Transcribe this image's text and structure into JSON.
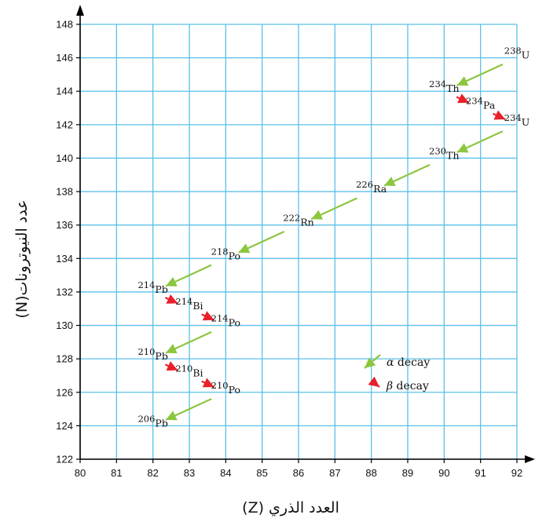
{
  "chart_data": {
    "type": "scatter",
    "xlabel": "العدد الذري (Z)",
    "ylabel": "عدد النيوترونات(N)",
    "xlim": [
      80,
      92
    ],
    "ylim": [
      122,
      148
    ],
    "x_ticks": [
      80,
      81,
      82,
      83,
      84,
      85,
      86,
      87,
      88,
      89,
      90,
      91,
      92
    ],
    "y_ticks": [
      122,
      124,
      126,
      128,
      130,
      132,
      134,
      136,
      138,
      140,
      142,
      144,
      146,
      148
    ],
    "grid": true,
    "colors": {
      "grid": "#5bc0e8",
      "alpha": "#8cc63f",
      "beta": "#e8202a",
      "axis": "#000000"
    },
    "nuclides": [
      {
        "mass": "238",
        "symbol": "U",
        "z": 92,
        "n": 146
      },
      {
        "mass": "234",
        "symbol": "Th",
        "z": 90,
        "n": 144
      },
      {
        "mass": "234",
        "symbol": "Pa",
        "z": 91,
        "n": 143
      },
      {
        "mass": "234",
        "symbol": "U",
        "z": 92,
        "n": 142
      },
      {
        "mass": "230",
        "symbol": "Th",
        "z": 90,
        "n": 140
      },
      {
        "mass": "226",
        "symbol": "Ra",
        "z": 88,
        "n": 138
      },
      {
        "mass": "222",
        "symbol": "Rn",
        "z": 86,
        "n": 136
      },
      {
        "mass": "218",
        "symbol": "Po",
        "z": 84,
        "n": 134
      },
      {
        "mass": "214",
        "symbol": "Pb",
        "z": 82,
        "n": 132
      },
      {
        "mass": "214",
        "symbol": "Bi",
        "z": 83,
        "n": 131
      },
      {
        "mass": "214",
        "symbol": "Po",
        "z": 84,
        "n": 130
      },
      {
        "mass": "210",
        "symbol": "Pb",
        "z": 82,
        "n": 128
      },
      {
        "mass": "210",
        "symbol": "Bi",
        "z": 83,
        "n": 127
      },
      {
        "mass": "210",
        "symbol": "Po",
        "z": 84,
        "n": 126
      },
      {
        "mass": "206",
        "symbol": "Pb",
        "z": 82,
        "n": 124
      }
    ],
    "decays": [
      {
        "type": "alpha",
        "from": [
          92,
          146
        ],
        "to": [
          90,
          144
        ]
      },
      {
        "type": "beta",
        "from": [
          90,
          144
        ],
        "to": [
          91,
          143
        ]
      },
      {
        "type": "beta",
        "from": [
          91,
          143
        ],
        "to": [
          92,
          142
        ]
      },
      {
        "type": "alpha",
        "from": [
          92,
          142
        ],
        "to": [
          90,
          140
        ]
      },
      {
        "type": "alpha",
        "from": [
          90,
          140
        ],
        "to": [
          88,
          138
        ]
      },
      {
        "type": "alpha",
        "from": [
          88,
          138
        ],
        "to": [
          86,
          136
        ]
      },
      {
        "type": "alpha",
        "from": [
          86,
          136
        ],
        "to": [
          84,
          134
        ]
      },
      {
        "type": "alpha",
        "from": [
          84,
          134
        ],
        "to": [
          82,
          132
        ]
      },
      {
        "type": "beta",
        "from": [
          82,
          132
        ],
        "to": [
          83,
          131
        ]
      },
      {
        "type": "beta",
        "from": [
          83,
          131
        ],
        "to": [
          84,
          130
        ]
      },
      {
        "type": "alpha",
        "from": [
          84,
          130
        ],
        "to": [
          82,
          128
        ]
      },
      {
        "type": "beta",
        "from": [
          82,
          128
        ],
        "to": [
          83,
          127
        ]
      },
      {
        "type": "beta",
        "from": [
          83,
          127
        ],
        "to": [
          84,
          126
        ]
      },
      {
        "type": "alpha",
        "from": [
          84,
          126
        ],
        "to": [
          82,
          124
        ]
      }
    ],
    "legend": [
      {
        "type": "alpha",
        "symbol": "α",
        "label": " decay"
      },
      {
        "type": "beta",
        "symbol": "β",
        "label": " decay"
      }
    ]
  }
}
